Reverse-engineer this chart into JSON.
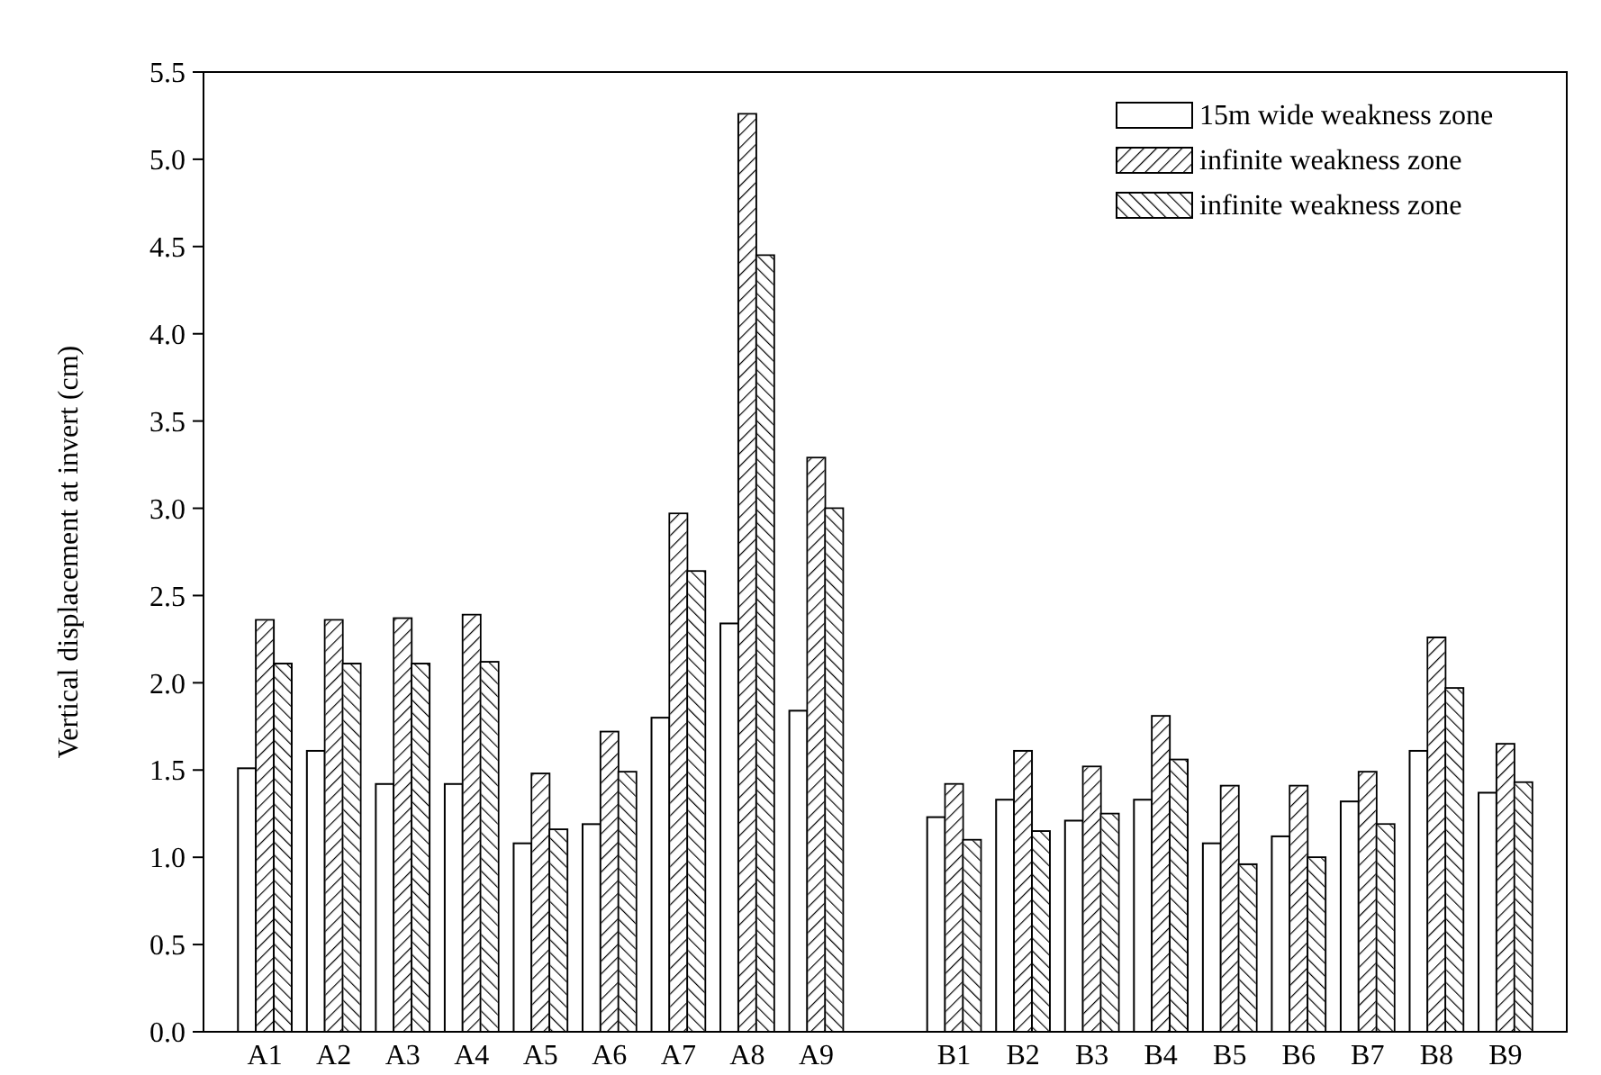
{
  "chart_data": {
    "type": "bar",
    "ylabel": "Vertical displacement at invert (cm)",
    "categories": [
      "A1",
      "A2",
      "A3",
      "A4",
      "A5",
      "A6",
      "A7",
      "A8",
      "A9",
      null,
      "B1",
      "B2",
      "B3",
      "B4",
      "B5",
      "B6",
      "B7",
      "B8",
      "B9"
    ],
    "series": [
      {
        "name": "15m wide weakness zone",
        "color": "#ffffff",
        "values": [
          1.51,
          1.61,
          1.42,
          1.42,
          1.08,
          1.19,
          1.8,
          2.34,
          1.84,
          null,
          1.23,
          1.33,
          1.21,
          1.33,
          1.08,
          1.12,
          1.32,
          1.61,
          1.37
        ]
      },
      {
        "name": "infinite weakness zone",
        "color": "#ffffff",
        "values": [
          2.36,
          2.36,
          2.37,
          2.39,
          1.48,
          1.72,
          2.97,
          5.26,
          3.29,
          null,
          1.42,
          1.61,
          1.52,
          1.81,
          1.41,
          1.41,
          1.49,
          2.26,
          1.65
        ]
      },
      {
        "name": "infinite weakness zone",
        "color": "#ffffff",
        "values": [
          2.11,
          2.11,
          2.11,
          2.12,
          1.16,
          1.49,
          2.64,
          4.45,
          3.0,
          null,
          1.1,
          1.15,
          1.25,
          1.56,
          0.96,
          1.0,
          1.19,
          1.97,
          1.43
        ]
      }
    ],
    "ylim": [
      0,
      5.5
    ],
    "yticks": [
      {
        "value": 0,
        "label": "0.0"
      },
      {
        "value": 0.5,
        "label": "0.5"
      },
      {
        "value": 1,
        "label": "1.0"
      },
      {
        "value": 1.5,
        "label": "1.5"
      },
      {
        "value": 2,
        "label": "2.0"
      },
      {
        "value": 2.5,
        "label": "2.5"
      },
      {
        "value": 3,
        "label": "3.0"
      },
      {
        "value": 3.5,
        "label": "3.5"
      },
      {
        "value": 4,
        "label": "4.0"
      },
      {
        "value": 4.5,
        "label": "4.5"
      },
      {
        "value": 5,
        "label": "5.0"
      },
      {
        "value": 5.5,
        "label": "5.5"
      }
    ],
    "grid": false,
    "legend": "top right"
  }
}
